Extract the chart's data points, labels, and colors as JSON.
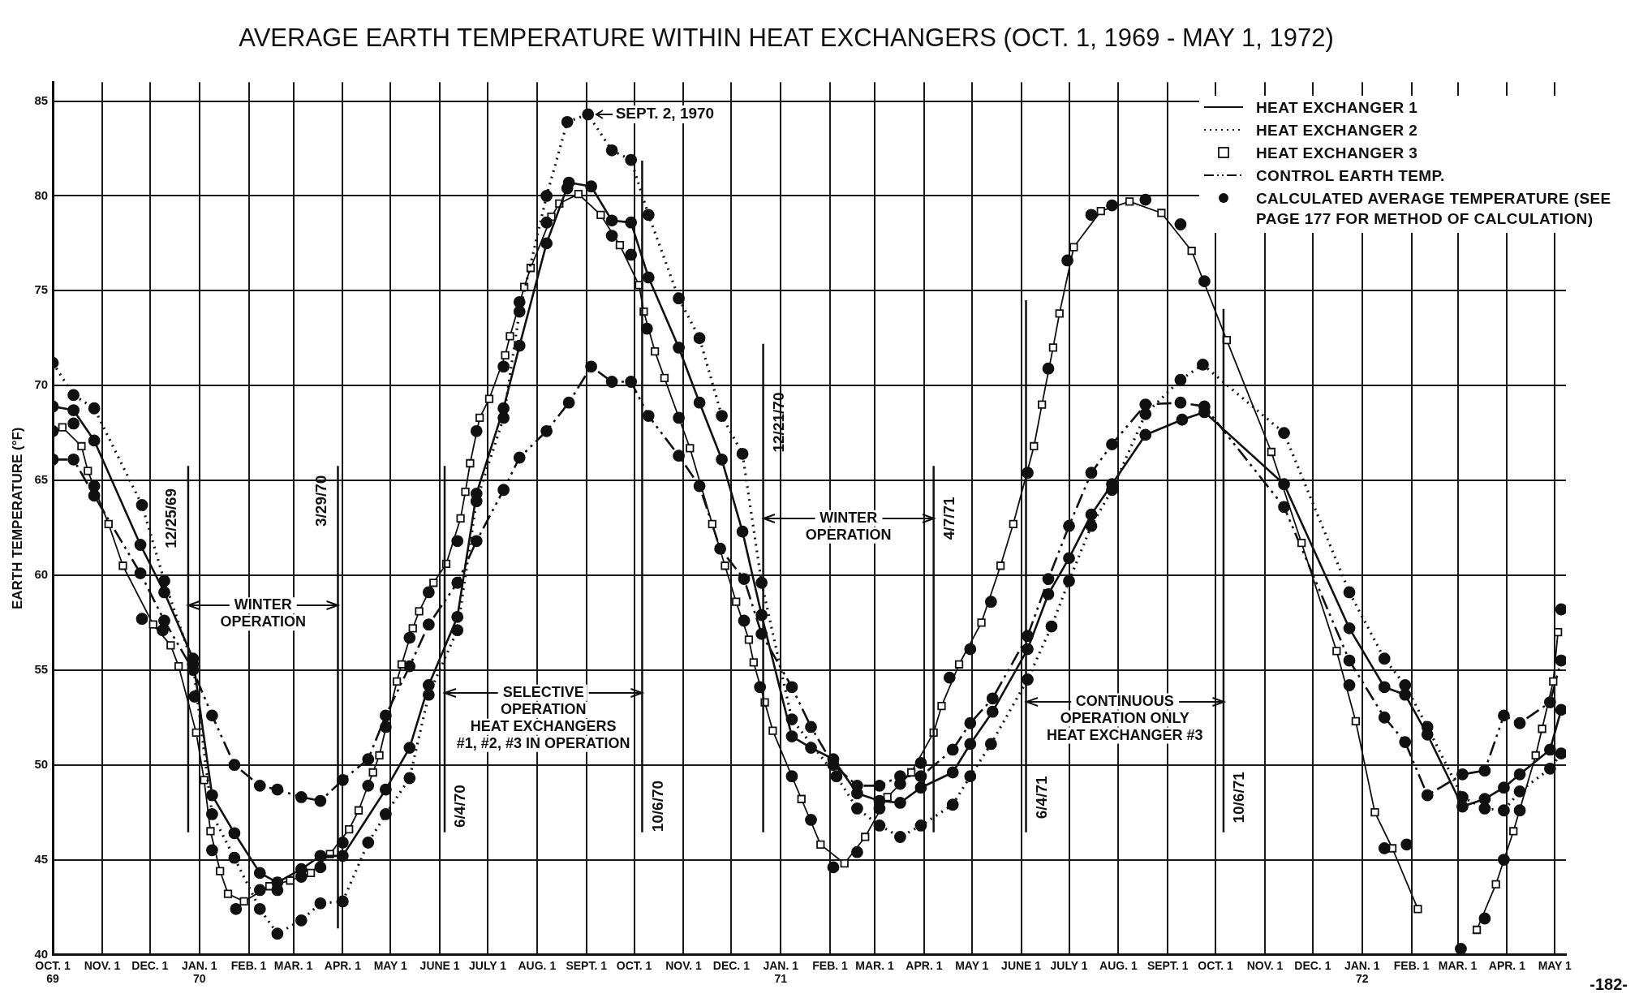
{
  "chart_data": {
    "type": "line",
    "title": "AVERAGE EARTH TEMPERATURE WITHIN HEAT EXCHANGERS (OCT. 1, 1969 - MAY 1, 1972)",
    "ylabel": "EARTH TEMPERATURE (°F)",
    "xlim": [
      "1969-10-01",
      "1972-05-08"
    ],
    "xticks": [
      {
        "value": "1969-10-01",
        "label": "OCT. 1\n69"
      },
      {
        "value": "1969-11-01",
        "label": "NOV. 1"
      },
      {
        "value": "1969-12-01",
        "label": "DEC. 1"
      },
      {
        "value": "1970-01-01",
        "label": "JAN. 1\n70"
      },
      {
        "value": "1970-02-01",
        "label": "FEB. 1"
      },
      {
        "value": "1970-03-01",
        "label": "MAR. 1"
      },
      {
        "value": "1970-04-01",
        "label": "APR. 1"
      },
      {
        "value": "1970-05-01",
        "label": "MAY 1"
      },
      {
        "value": "1970-06-01",
        "label": "JUNE 1"
      },
      {
        "value": "1970-07-01",
        "label": "JULY 1"
      },
      {
        "value": "1970-08-01",
        "label": "AUG. 1"
      },
      {
        "value": "1970-09-01",
        "label": "SEPT. 1"
      },
      {
        "value": "1970-10-01",
        "label": "OCT. 1"
      },
      {
        "value": "1970-11-01",
        "label": "NOV. 1"
      },
      {
        "value": "1970-12-01",
        "label": "DEC. 1"
      },
      {
        "value": "1971-01-01",
        "label": "JAN. 1\n71"
      },
      {
        "value": "1971-02-01",
        "label": "FEB. 1"
      },
      {
        "value": "1971-03-01",
        "label": "MAR. 1"
      },
      {
        "value": "1971-04-01",
        "label": "APR. 1"
      },
      {
        "value": "1971-05-01",
        "label": "MAY 1"
      },
      {
        "value": "1971-06-01",
        "label": "JUNE 1"
      },
      {
        "value": "1971-07-01",
        "label": "JULY 1"
      },
      {
        "value": "1971-08-01",
        "label": "AUG. 1"
      },
      {
        "value": "1971-09-01",
        "label": "SEPT. 1"
      },
      {
        "value": "1971-10-01",
        "label": "OCT. 1"
      },
      {
        "value": "1971-11-01",
        "label": "NOV. 1"
      },
      {
        "value": "1971-12-01",
        "label": "DEC. 1"
      },
      {
        "value": "1972-01-01",
        "label": "JAN. 1\n72"
      },
      {
        "value": "1972-02-01",
        "label": "FEB. 1"
      },
      {
        "value": "1972-03-01",
        "label": "MAR. 1"
      },
      {
        "value": "1972-04-01",
        "label": "APR. 1"
      },
      {
        "value": "1972-05-01",
        "label": "MAY 1"
      }
    ],
    "ylim": [
      40,
      86
    ],
    "yticks": [
      40,
      45,
      50,
      55,
      60,
      65,
      70,
      75,
      80,
      85
    ],
    "grid": true,
    "legend": "top right",
    "series": [
      {
        "name": "HEAT EXCHANGER 1",
        "color": "#111111",
        "line_style": "solid",
        "marker": "circle",
        "x": [
          "1969-10-01",
          "1969-10-14",
          "1969-10-27",
          "1969-11-25",
          "1969-12-10",
          "1969-12-28",
          "1970-01-09",
          "1970-01-23",
          "1970-02-08",
          "1970-02-19",
          "1970-03-06",
          "1970-03-18",
          "1970-04-01",
          "1970-04-28",
          "1970-05-13",
          "1970-05-25",
          "1970-06-12",
          "1970-06-24",
          "1970-07-11",
          "1970-07-21",
          "1970-08-07",
          "1970-08-21",
          "1970-09-04",
          "1970-09-17",
          "1970-09-29",
          "1970-10-10",
          "1970-10-29",
          "1970-11-11",
          "1970-11-25",
          "1970-12-08",
          "1970-12-20",
          "1971-01-08",
          "1971-01-20",
          "1971-02-03",
          "1971-02-18",
          "1971-03-04",
          "1971-03-17",
          "1971-03-30",
          "1971-04-19",
          "1971-04-30",
          "1971-05-14",
          "1971-06-05",
          "1971-06-18",
          "1971-07-01",
          "1971-07-15",
          "1971-07-28",
          "1971-08-18",
          "1971-09-10",
          "1971-09-24",
          "1971-11-13",
          "1971-12-24",
          "1972-01-15",
          "1972-01-28",
          "1972-02-11",
          "1972-03-04",
          "1972-03-18",
          "1972-03-30",
          "1972-04-09",
          "1972-04-28",
          "1972-05-05"
        ],
        "values": [
          68.9,
          68.7,
          67.1,
          61.6,
          59.1,
          55.6,
          48.4,
          46.4,
          44.3,
          43.8,
          44.5,
          45.2,
          45.2,
          48.7,
          50.9,
          54.2,
          57.8,
          64.3,
          68.8,
          72.1,
          77.5,
          80.7,
          80.5,
          78.7,
          78.6,
          75.7,
          72.0,
          69.1,
          66.1,
          62.3,
          57.9,
          51.5,
          50.9,
          50.3,
          48.5,
          48.1,
          48.0,
          48.8,
          49.6,
          51.1,
          52.8,
          56.1,
          59.0,
          60.9,
          63.2,
          64.8,
          67.4,
          68.2,
          68.6,
          64.8,
          57.2,
          54.1,
          53.7,
          51.6,
          47.8,
          48.2,
          48.8,
          49.5,
          50.8,
          52.9
        ]
      },
      {
        "name": "HEAT EXCHANGER 2",
        "color": "#111111",
        "line_style": "dotted",
        "marker": "circle",
        "x": [
          "1969-10-01",
          "1969-10-14",
          "1969-10-27",
          "1969-11-26",
          "1969-12-10",
          "1969-12-28",
          "1970-01-09",
          "1970-01-23",
          "1970-02-08",
          "1970-02-19",
          "1970-03-06",
          "1970-03-18",
          "1970-04-01",
          "1970-04-17",
          "1970-04-28",
          "1970-05-13",
          "1970-05-25",
          "1970-06-12",
          "1970-06-24",
          "1970-07-11",
          "1970-07-21",
          "1970-08-07",
          "1970-08-20",
          "1970-09-02",
          "1970-09-17",
          "1970-09-29",
          "1970-10-10",
          "1970-10-29",
          "1970-11-11",
          "1970-11-25",
          "1970-12-08",
          "1970-12-20",
          "1971-01-08",
          "1971-02-05",
          "1971-02-18",
          "1971-03-04",
          "1971-03-17",
          "1971-03-30",
          "1971-04-19",
          "1971-04-30",
          "1971-05-13",
          "1971-06-05",
          "1971-06-20",
          "1971-07-01",
          "1971-07-15",
          "1971-07-28",
          "1971-08-18",
          "1971-09-09",
          "1971-09-23",
          "1971-11-13",
          "1971-12-24",
          "1972-01-15",
          "1972-01-28",
          "1972-02-11",
          "1972-03-04",
          "1972-03-18",
          "1972-03-30",
          "1972-04-09",
          "1972-04-28",
          "1972-05-05"
        ],
        "values": [
          71.2,
          69.5,
          68.8,
          63.7,
          59.7,
          55.3,
          47.4,
          45.1,
          42.4,
          41.1,
          41.8,
          42.7,
          42.8,
          45.9,
          47.4,
          49.3,
          53.7,
          57.1,
          63.9,
          68.3,
          73.9,
          80.0,
          83.9,
          84.3,
          82.4,
          81.9,
          79.0,
          74.6,
          72.5,
          68.4,
          66.4,
          59.6,
          52.4,
          49.4,
          47.7,
          46.8,
          46.2,
          46.8,
          47.9,
          49.4,
          51.1,
          54.5,
          57.3,
          59.7,
          62.6,
          64.5,
          68.5,
          70.3,
          71.1,
          67.5,
          59.1,
          55.6,
          54.2,
          52.0,
          48.3,
          47.7,
          47.6,
          48.6,
          49.8,
          50.6
        ]
      },
      {
        "name": "HEAT EXCHANGER 3",
        "color": "#111111",
        "line_style": "solid",
        "marker": "square",
        "x": [
          "1969-10-07",
          "1969-10-19",
          "1969-10-23",
          "1969-11-05",
          "1969-11-14",
          "1969-12-03",
          "1969-12-14",
          "1969-12-19",
          "1969-12-30",
          "1970-01-04",
          "1970-01-08",
          "1970-01-14",
          "1970-01-19",
          "1970-01-29",
          "1970-02-14",
          "1970-02-27",
          "1970-03-12",
          "1970-03-24",
          "1970-04-05",
          "1970-04-11",
          "1970-04-20",
          "1970-04-24",
          "1970-05-05",
          "1970-05-08",
          "1970-05-15",
          "1970-05-19",
          "1970-05-28",
          "1970-06-05",
          "1970-06-14",
          "1970-06-17",
          "1970-06-20",
          "1970-06-26",
          "1970-07-02",
          "1970-07-12",
          "1970-07-15",
          "1970-07-24",
          "1970-07-28",
          "1970-08-10",
          "1970-08-15",
          "1970-08-27",
          "1970-09-10",
          "1970-09-22",
          "1970-10-04",
          "1970-10-07",
          "1970-10-14",
          "1970-10-20",
          "1970-11-05",
          "1970-11-19",
          "1970-11-27",
          "1970-12-04",
          "1970-12-12",
          "1970-12-15",
          "1970-12-22",
          "1970-12-27",
          "1971-01-14",
          "1971-01-26",
          "1971-02-10",
          "1971-02-23",
          "1971-03-09",
          "1971-03-24",
          "1971-04-07",
          "1971-04-12",
          "1971-04-23",
          "1971-05-07",
          "1971-05-19",
          "1971-05-27",
          "1971-06-09",
          "1971-06-14",
          "1971-06-21",
          "1971-06-25",
          "1971-07-04",
          "1971-07-21",
          "1971-08-08",
          "1971-08-28",
          "1971-09-16",
          "1971-10-08",
          "1971-11-05",
          "1971-11-24",
          "1971-12-16",
          "1971-12-28",
          "1972-01-09",
          "1972-01-20",
          "1972-02-05",
          "1972-02-20",
          "1972-03-13",
          "1972-03-25",
          "1972-04-05",
          "1972-04-19",
          "1972-04-23",
          "1972-04-30",
          "1972-05-03"
        ],
        "values": [
          67.8,
          66.8,
          65.5,
          62.7,
          60.5,
          57.4,
          56.3,
          55.2,
          51.7,
          49.2,
          46.5,
          44.4,
          43.2,
          42.8,
          43.6,
          43.9,
          44.3,
          45.3,
          46.6,
          47.6,
          49.6,
          50.5,
          54.4,
          55.3,
          57.2,
          58.1,
          59.6,
          60.6,
          63.0,
          64.4,
          65.9,
          68.3,
          69.3,
          71.6,
          72.6,
          75.2,
          76.2,
          78.9,
          79.6,
          80.1,
          79.0,
          77.4,
          75.3,
          73.9,
          71.8,
          70.4,
          66.7,
          62.7,
          60.5,
          58.6,
          56.6,
          55.4,
          53.3,
          51.8,
          48.2,
          45.8,
          44.8,
          46.2,
          48.3,
          49.6,
          51.7,
          53.1,
          55.3,
          57.5,
          60.5,
          62.7,
          66.8,
          69.0,
          72.0,
          73.8,
          77.3,
          79.2,
          79.7,
          79.1,
          77.1,
          72.4,
          66.5,
          61.7,
          56.0,
          52.3,
          47.5,
          45.6,
          42.4,
          null,
          41.3,
          43.7,
          46.5,
          50.5,
          51.9,
          54.4,
          57.0
        ]
      },
      {
        "name": "CONTROL EARTH TEMP.",
        "color": "#111111",
        "line_style": "dashed",
        "marker": "circle",
        "x": [
          "1969-10-01",
          "1969-10-14",
          "1969-10-27",
          "1969-11-25",
          "1969-12-10",
          "1969-12-28",
          "1970-01-09",
          "1970-01-23",
          "1970-02-08",
          "1970-02-19",
          "1970-03-06",
          "1970-03-18",
          "1970-04-01",
          "1970-04-17",
          "1970-04-28",
          "1970-05-13",
          "1970-05-25",
          "1970-06-12",
          "1970-06-24",
          "1970-07-11",
          "1970-07-21",
          "1970-08-07",
          "1970-08-21",
          "1970-09-04",
          "1970-09-17",
          "1970-09-29",
          "1970-10-10",
          "1970-10-29",
          "1970-11-11",
          "1970-11-24",
          "1970-12-09",
          "1970-12-20",
          "1971-01-08",
          "1971-01-20",
          "1971-02-03",
          "1971-02-18",
          "1971-03-04",
          "1971-03-17",
          "1971-03-30",
          "1971-04-19",
          "1971-04-30",
          "1971-05-14",
          "1971-06-05",
          "1971-06-18",
          "1971-07-01",
          "1971-07-15",
          "1971-07-28",
          "1971-08-18",
          "1971-09-09",
          "1971-09-24",
          "1971-11-13",
          "1971-12-24",
          "1972-01-15",
          "1972-01-28",
          "1972-02-11",
          "1972-03-04",
          "1972-03-18",
          "1972-03-30",
          "1972-04-09",
          "1972-04-28",
          "1972-05-05"
        ],
        "values": [
          66.1,
          66.1,
          64.2,
          60.1,
          57.6,
          55.0,
          52.6,
          50.0,
          48.9,
          48.7,
          48.3,
          48.1,
          49.2,
          50.3,
          52.6,
          55.2,
          57.4,
          59.6,
          61.8,
          64.5,
          66.2,
          67.6,
          69.1,
          71.0,
          70.2,
          70.2,
          68.4,
          66.3,
          64.7,
          61.4,
          59.8,
          56.9,
          54.1,
          52.0,
          50.0,
          48.9,
          48.9,
          49.4,
          49.4,
          50.8,
          52.2,
          53.5,
          56.8,
          59.8,
          62.6,
          65.4,
          66.9,
          69.0,
          69.1,
          68.9,
          63.6,
          55.5,
          52.5,
          51.2,
          48.4,
          49.5,
          49.7,
          52.6,
          52.2,
          53.3,
          55.5
        ]
      },
      {
        "name": "CALCULATED AVERAGE TEMPERATURE (SEE PAGE 177 FOR METHOD OF CALCULATION)",
        "type": "scatter",
        "color": "#111111",
        "marker": "circle",
        "x": [
          "1969-10-01",
          "1969-10-14",
          "1969-10-27",
          "1969-11-26",
          "1969-12-09",
          "1969-12-29",
          "1970-01-09",
          "1970-01-24",
          "1970-02-08",
          "1970-02-19",
          "1970-03-06",
          "1970-03-18",
          "1970-04-01",
          "1970-04-17",
          "1970-04-28",
          "1970-05-13",
          "1970-05-25",
          "1970-06-12",
          "1970-06-24",
          "1970-07-11",
          "1970-07-21",
          "1970-08-07",
          "1970-08-20",
          "1970-09-17",
          "1970-09-29",
          "1970-10-09",
          "1970-10-29",
          "1970-12-09",
          "1970-12-19",
          "1971-01-08",
          "1971-01-20",
          "1971-02-03",
          "1971-02-18",
          "1971-03-04",
          "1971-03-17",
          "1971-03-30",
          "1971-04-17",
          "1971-04-30",
          "1971-05-13",
          "1971-06-05",
          "1971-06-18",
          "1971-06-30",
          "1971-07-15",
          "1971-07-28",
          "1971-08-18",
          "1971-09-09",
          "1971-09-24",
          "1971-12-24",
          "1972-01-15",
          "1972-01-29",
          "1972-03-03",
          "1972-03-18",
          "1972-03-30",
          "1972-04-09",
          "1972-05-05"
        ],
        "values": [
          67.6,
          68.0,
          64.7,
          57.7,
          57.1,
          53.6,
          45.5,
          42.4,
          43.4,
          43.4,
          44.1,
          44.6,
          45.9,
          48.9,
          52.0,
          56.7,
          59.1,
          61.8,
          67.6,
          71.0,
          74.4,
          78.6,
          80.4,
          77.9,
          76.9,
          73.0,
          68.3,
          57.6,
          54.1,
          49.4,
          47.1,
          44.6,
          45.4,
          47.7,
          49.0,
          50.1,
          54.6,
          56.1,
          58.6,
          65.4,
          70.9,
          76.6,
          79.0,
          79.5,
          79.8,
          78.5,
          75.5,
          54.2,
          45.6,
          45.8,
          40.3,
          41.9,
          45.0,
          47.6,
          58.2
        ]
      }
    ],
    "ref_lines": [
      {
        "axis": "x",
        "value": "1969-12-25",
        "label": "12/25/69"
      },
      {
        "axis": "x",
        "value": "1970-03-29",
        "label": "3/29/70"
      },
      {
        "axis": "x",
        "value": "1970-06-04",
        "label": "6/4/70"
      },
      {
        "axis": "x",
        "value": "1970-10-06",
        "label": "10/6/70"
      },
      {
        "axis": "x",
        "value": "1970-12-21",
        "label": "12/21/70"
      },
      {
        "axis": "x",
        "value": "1971-04-07",
        "label": "4/7/71"
      },
      {
        "axis": "x",
        "value": "1971-06-04",
        "label": "6/4/71"
      },
      {
        "axis": "x",
        "value": "1971-10-06",
        "label": "10/6/71"
      }
    ],
    "annotations": [
      {
        "text": "SEPT. 2, 1970",
        "x": "1970-09-02",
        "y": 84.3
      },
      "WINTER\nOPERATION",
      "SELECTIVE\nOPERATION\nHEAT EXCHANGERS\n#1, #2, #3 IN OPERATION",
      "WINTER\nOPERATION",
      "CONTINUOUS\nOPERATION ONLY\nHEAT EXCHANGER #3",
      "-182-"
    ]
  }
}
